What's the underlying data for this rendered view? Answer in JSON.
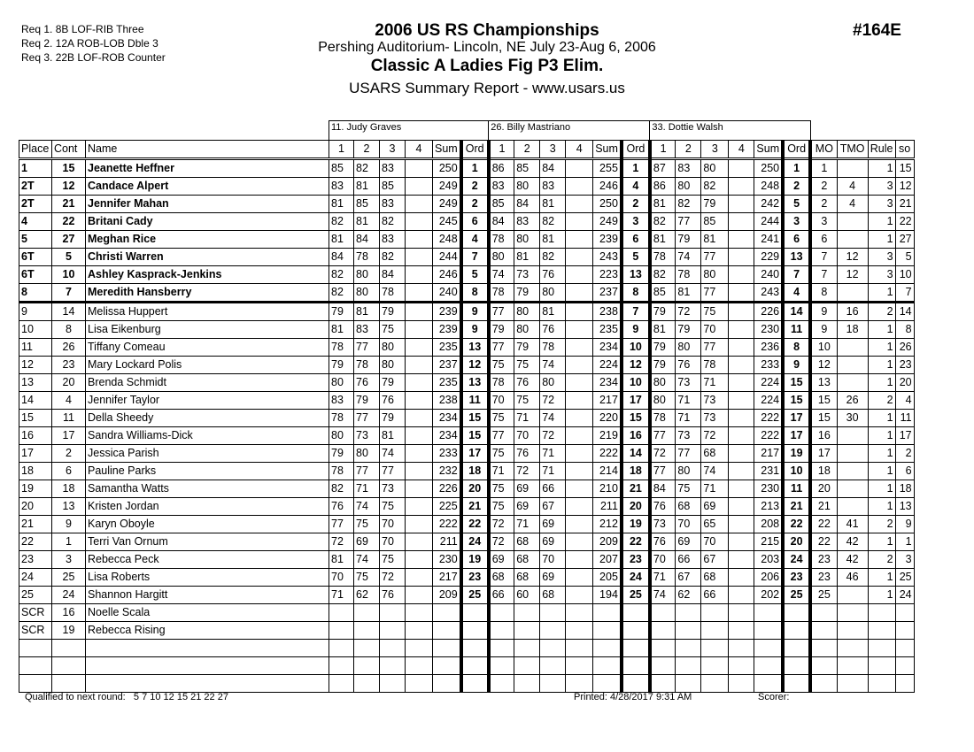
{
  "requirements": [
    "Req  1.  8B LOF-RIB Three",
    "Req  2.  12A ROB-LOB Dble 3",
    "Req  3.  22B LOF-ROB Counter"
  ],
  "header": {
    "title": "2006 US RS Championships",
    "venue": "Pershing Auditorium- Lincoln, NE  July 23-Aug 6, 2006",
    "event": "Classic A Ladies Fig P3 Elim.",
    "report": "USARS Summary Report - www.usars.us",
    "event_code": "#164E"
  },
  "judges": [
    "11.  Judy Graves",
    "26.  Billy Mastriano",
    "33.  Dottie Walsh"
  ],
  "columns": {
    "place": "Place",
    "cont": "Cont",
    "name": "Name",
    "scores": [
      "1",
      "2",
      "3",
      "4",
      "Sum",
      "Ord"
    ],
    "mo": "MO",
    "tmo": "TMO",
    "rule": "Rule",
    "so": "so"
  },
  "rows": [
    {
      "place": "1",
      "cont": "15",
      "name": "Jeanette Heffner",
      "j": [
        [
          "85",
          "82",
          "83",
          "",
          "250",
          "1"
        ],
        [
          "86",
          "85",
          "84",
          "",
          "255",
          "1"
        ],
        [
          "87",
          "83",
          "80",
          "",
          "250",
          "1"
        ]
      ],
      "mo": "1",
      "tmo": "",
      "rule": "1",
      "so": "15"
    },
    {
      "place": "2T",
      "cont": "12",
      "name": "Candace Alpert",
      "j": [
        [
          "83",
          "81",
          "85",
          "",
          "249",
          "2"
        ],
        [
          "83",
          "80",
          "83",
          "",
          "246",
          "4"
        ],
        [
          "86",
          "80",
          "82",
          "",
          "248",
          "2"
        ]
      ],
      "mo": "2",
      "tmo": "4",
      "rule": "3",
      "so": "12"
    },
    {
      "place": "2T",
      "cont": "21",
      "name": "Jennifer Mahan",
      "j": [
        [
          "81",
          "85",
          "83",
          "",
          "249",
          "2"
        ],
        [
          "85",
          "84",
          "81",
          "",
          "250",
          "2"
        ],
        [
          "81",
          "82",
          "79",
          "",
          "242",
          "5"
        ]
      ],
      "mo": "2",
      "tmo": "4",
      "rule": "3",
      "so": "21"
    },
    {
      "place": "4",
      "cont": "22",
      "name": "Britani Cady",
      "j": [
        [
          "82",
          "81",
          "82",
          "",
          "245",
          "6"
        ],
        [
          "84",
          "83",
          "82",
          "",
          "249",
          "3"
        ],
        [
          "82",
          "77",
          "85",
          "",
          "244",
          "3"
        ]
      ],
      "mo": "3",
      "tmo": "",
      "rule": "1",
      "so": "22"
    },
    {
      "place": "5",
      "cont": "27",
      "name": "Meghan Rice",
      "j": [
        [
          "81",
          "84",
          "83",
          "",
          "248",
          "4"
        ],
        [
          "78",
          "80",
          "81",
          "",
          "239",
          "6"
        ],
        [
          "81",
          "79",
          "81",
          "",
          "241",
          "6"
        ]
      ],
      "mo": "6",
      "tmo": "",
      "rule": "1",
      "so": "27"
    },
    {
      "place": "6T",
      "cont": "5",
      "name": "Christi Warren",
      "j": [
        [
          "84",
          "78",
          "82",
          "",
          "244",
          "7"
        ],
        [
          "80",
          "81",
          "82",
          "",
          "243",
          "5"
        ],
        [
          "78",
          "74",
          "77",
          "",
          "229",
          "13"
        ]
      ],
      "mo": "7",
      "tmo": "12",
      "rule": "3",
      "so": "5"
    },
    {
      "place": "6T",
      "cont": "10",
      "name": "Ashley Kasprack-Jenkins",
      "j": [
        [
          "82",
          "80",
          "84",
          "",
          "246",
          "5"
        ],
        [
          "74",
          "73",
          "76",
          "",
          "223",
          "13"
        ],
        [
          "82",
          "78",
          "80",
          "",
          "240",
          "7"
        ]
      ],
      "mo": "7",
      "tmo": "12",
      "rule": "3",
      "so": "10"
    },
    {
      "place": "8",
      "cont": "7",
      "name": "Meredith Hansberry",
      "j": [
        [
          "82",
          "80",
          "78",
          "",
          "240",
          "8"
        ],
        [
          "78",
          "79",
          "80",
          "",
          "237",
          "8"
        ],
        [
          "85",
          "81",
          "77",
          "",
          "243",
          "4"
        ]
      ],
      "mo": "8",
      "tmo": "",
      "rule": "1",
      "so": "7"
    },
    {
      "place": "9",
      "cont": "14",
      "name": "Melissa Huppert",
      "j": [
        [
          "79",
          "81",
          "79",
          "",
          "239",
          "9"
        ],
        [
          "77",
          "80",
          "81",
          "",
          "238",
          "7"
        ],
        [
          "79",
          "72",
          "75",
          "",
          "226",
          "14"
        ]
      ],
      "mo": "9",
      "tmo": "16",
      "rule": "2",
      "so": "14"
    },
    {
      "place": "10",
      "cont": "8",
      "name": "Lisa Eikenburg",
      "j": [
        [
          "81",
          "83",
          "75",
          "",
          "239",
          "9"
        ],
        [
          "79",
          "80",
          "76",
          "",
          "235",
          "9"
        ],
        [
          "81",
          "79",
          "70",
          "",
          "230",
          "11"
        ]
      ],
      "mo": "9",
      "tmo": "18",
      "rule": "1",
      "so": "8"
    },
    {
      "place": "11",
      "cont": "26",
      "name": "Tiffany Comeau",
      "j": [
        [
          "78",
          "77",
          "80",
          "",
          "235",
          "13"
        ],
        [
          "77",
          "79",
          "78",
          "",
          "234",
          "10"
        ],
        [
          "79",
          "80",
          "77",
          "",
          "236",
          "8"
        ]
      ],
      "mo": "10",
      "tmo": "",
      "rule": "1",
      "so": "26"
    },
    {
      "place": "12",
      "cont": "23",
      "name": "Mary Lockard Polis",
      "j": [
        [
          "79",
          "78",
          "80",
          "",
          "237",
          "12"
        ],
        [
          "75",
          "75",
          "74",
          "",
          "224",
          "12"
        ],
        [
          "79",
          "76",
          "78",
          "",
          "233",
          "9"
        ]
      ],
      "mo": "12",
      "tmo": "",
      "rule": "1",
      "so": "23"
    },
    {
      "place": "13",
      "cont": "20",
      "name": "Brenda Schmidt",
      "j": [
        [
          "80",
          "76",
          "79",
          "",
          "235",
          "13"
        ],
        [
          "78",
          "76",
          "80",
          "",
          "234",
          "10"
        ],
        [
          "80",
          "73",
          "71",
          "",
          "224",
          "15"
        ]
      ],
      "mo": "13",
      "tmo": "",
      "rule": "1",
      "so": "20"
    },
    {
      "place": "14",
      "cont": "4",
      "name": "Jennifer Taylor",
      "j": [
        [
          "83",
          "79",
          "76",
          "",
          "238",
          "11"
        ],
        [
          "70",
          "75",
          "72",
          "",
          "217",
          "17"
        ],
        [
          "80",
          "71",
          "73",
          "",
          "224",
          "15"
        ]
      ],
      "mo": "15",
      "tmo": "26",
      "rule": "2",
      "so": "4"
    },
    {
      "place": "15",
      "cont": "11",
      "name": "Della Sheedy",
      "j": [
        [
          "78",
          "77",
          "79",
          "",
          "234",
          "15"
        ],
        [
          "75",
          "71",
          "74",
          "",
          "220",
          "15"
        ],
        [
          "78",
          "71",
          "73",
          "",
          "222",
          "17"
        ]
      ],
      "mo": "15",
      "tmo": "30",
      "rule": "1",
      "so": "11"
    },
    {
      "place": "16",
      "cont": "17",
      "name": "Sandra Williams-Dick",
      "j": [
        [
          "80",
          "73",
          "81",
          "",
          "234",
          "15"
        ],
        [
          "77",
          "70",
          "72",
          "",
          "219",
          "16"
        ],
        [
          "77",
          "73",
          "72",
          "",
          "222",
          "17"
        ]
      ],
      "mo": "16",
      "tmo": "",
      "rule": "1",
      "so": "17"
    },
    {
      "place": "17",
      "cont": "2",
      "name": "Jessica Parish",
      "j": [
        [
          "79",
          "80",
          "74",
          "",
          "233",
          "17"
        ],
        [
          "75",
          "76",
          "71",
          "",
          "222",
          "14"
        ],
        [
          "72",
          "77",
          "68",
          "",
          "217",
          "19"
        ]
      ],
      "mo": "17",
      "tmo": "",
      "rule": "1",
      "so": "2"
    },
    {
      "place": "18",
      "cont": "6",
      "name": "Pauline Parks",
      "j": [
        [
          "78",
          "77",
          "77",
          "",
          "232",
          "18"
        ],
        [
          "71",
          "72",
          "71",
          "",
          "214",
          "18"
        ],
        [
          "77",
          "80",
          "74",
          "",
          "231",
          "10"
        ]
      ],
      "mo": "18",
      "tmo": "",
      "rule": "1",
      "so": "6"
    },
    {
      "place": "19",
      "cont": "18",
      "name": "Samantha Watts",
      "j": [
        [
          "82",
          "71",
          "73",
          "",
          "226",
          "20"
        ],
        [
          "75",
          "69",
          "66",
          "",
          "210",
          "21"
        ],
        [
          "84",
          "75",
          "71",
          "",
          "230",
          "11"
        ]
      ],
      "mo": "20",
      "tmo": "",
      "rule": "1",
      "so": "18"
    },
    {
      "place": "20",
      "cont": "13",
      "name": "Kristen Jordan",
      "j": [
        [
          "76",
          "74",
          "75",
          "",
          "225",
          "21"
        ],
        [
          "75",
          "69",
          "67",
          "",
          "211",
          "20"
        ],
        [
          "76",
          "68",
          "69",
          "",
          "213",
          "21"
        ]
      ],
      "mo": "21",
      "tmo": "",
      "rule": "1",
      "so": "13"
    },
    {
      "place": "21",
      "cont": "9",
      "name": "Karyn Oboyle",
      "j": [
        [
          "77",
          "75",
          "70",
          "",
          "222",
          "22"
        ],
        [
          "72",
          "71",
          "69",
          "",
          "212",
          "19"
        ],
        [
          "73",
          "70",
          "65",
          "",
          "208",
          "22"
        ]
      ],
      "mo": "22",
      "tmo": "41",
      "rule": "2",
      "so": "9"
    },
    {
      "place": "22",
      "cont": "1",
      "name": "Terri Van Ornum",
      "j": [
        [
          "72",
          "69",
          "70",
          "",
          "211",
          "24"
        ],
        [
          "72",
          "68",
          "69",
          "",
          "209",
          "22"
        ],
        [
          "76",
          "69",
          "70",
          "",
          "215",
          "20"
        ]
      ],
      "mo": "22",
      "tmo": "42",
      "rule": "1",
      "so": "1"
    },
    {
      "place": "23",
      "cont": "3",
      "name": "Rebecca Peck",
      "j": [
        [
          "81",
          "74",
          "75",
          "",
          "230",
          "19"
        ],
        [
          "69",
          "68",
          "70",
          "",
          "207",
          "23"
        ],
        [
          "70",
          "66",
          "67",
          "",
          "203",
          "24"
        ]
      ],
      "mo": "23",
      "tmo": "42",
      "rule": "2",
      "so": "3"
    },
    {
      "place": "24",
      "cont": "25",
      "name": "Lisa Roberts",
      "j": [
        [
          "70",
          "75",
          "72",
          "",
          "217",
          "23"
        ],
        [
          "68",
          "68",
          "69",
          "",
          "205",
          "24"
        ],
        [
          "71",
          "67",
          "68",
          "",
          "206",
          "23"
        ]
      ],
      "mo": "23",
      "tmo": "46",
      "rule": "1",
      "so": "25"
    },
    {
      "place": "25",
      "cont": "24",
      "name": "Shannon Hargitt",
      "j": [
        [
          "71",
          "62",
          "76",
          "",
          "209",
          "25"
        ],
        [
          "66",
          "60",
          "68",
          "",
          "194",
          "25"
        ],
        [
          "74",
          "62",
          "66",
          "",
          "202",
          "25"
        ]
      ],
      "mo": "25",
      "tmo": "",
      "rule": "1",
      "so": "24"
    },
    {
      "place": "SCR",
      "cont": "16",
      "name": "Noelle Scala",
      "j": [
        [
          "",
          "",
          "",
          "",
          "",
          ""
        ],
        [
          "",
          "",
          "",
          "",
          "",
          ""
        ],
        [
          "",
          "",
          "",
          "",
          "",
          ""
        ]
      ],
      "mo": "",
      "tmo": "",
      "rule": "",
      "so": ""
    },
    {
      "place": "SCR",
      "cont": "19",
      "name": "Rebecca Rising",
      "j": [
        [
          "",
          "",
          "",
          "",
          "",
          ""
        ],
        [
          "",
          "",
          "",
          "",
          "",
          ""
        ],
        [
          "",
          "",
          "",
          "",
          "",
          ""
        ]
      ],
      "mo": "",
      "tmo": "",
      "rule": "",
      "so": ""
    },
    {
      "place": "",
      "cont": "",
      "name": "",
      "j": [
        [
          "",
          "",
          "",
          "",
          "",
          ""
        ],
        [
          "",
          "",
          "",
          "",
          "",
          ""
        ],
        [
          "",
          "",
          "",
          "",
          "",
          ""
        ]
      ],
      "mo": "",
      "tmo": "",
      "rule": "",
      "so": ""
    },
    {
      "place": "",
      "cont": "",
      "name": "",
      "j": [
        [
          "",
          "",
          "",
          "",
          "",
          ""
        ],
        [
          "",
          "",
          "",
          "",
          "",
          ""
        ],
        [
          "",
          "",
          "",
          "",
          "",
          ""
        ]
      ],
      "mo": "",
      "tmo": "",
      "rule": "",
      "so": ""
    },
    {
      "place": "",
      "cont": "",
      "name": "",
      "j": [
        [
          "",
          "",
          "",
          "",
          "",
          ""
        ],
        [
          "",
          "",
          "",
          "",
          "",
          ""
        ],
        [
          "",
          "",
          "",
          "",
          "",
          ""
        ]
      ],
      "mo": "",
      "tmo": "",
      "rule": "",
      "so": ""
    }
  ],
  "footer": {
    "qualified_label": "Qualified to next round:",
    "qualified_list": "5 7 10 12 15 21 22 27",
    "printed": "Printed:  4/28/2017  9:31 AM",
    "scorer": "Scorer:"
  }
}
